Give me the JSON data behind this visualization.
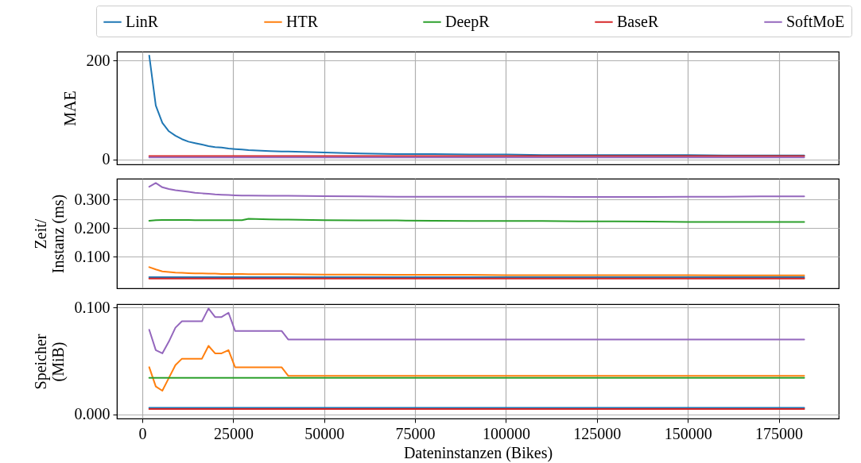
{
  "chart_data": [
    {
      "type": "line",
      "ylabel": "MAE",
      "legend": "top",
      "grid": true,
      "tick_labels": "y",
      "line_style": "solid",
      "marker": "none",
      "x": [
        1900,
        3700,
        5500,
        7300,
        9100,
        10900,
        12700,
        14500,
        16400,
        18200,
        20000,
        21800,
        23700,
        25500,
        27400,
        29200,
        35000,
        38300,
        40100,
        50000,
        60000,
        70000,
        80000,
        90000,
        100000,
        110000,
        120000,
        130000,
        140000,
        150000,
        160000,
        170000,
        182000
      ],
      "xlim": [
        -7000,
        191500
      ],
      "xticks": [
        0,
        25000,
        50000,
        75000,
        100000,
        125000,
        150000,
        175000
      ],
      "ylim": [
        -10,
        218
      ],
      "yticks": [
        0,
        200
      ],
      "series": [
        {
          "name": "LinR",
          "color": "#1f77b4",
          "values": [
            210,
            109,
            74,
            57,
            48,
            41,
            36,
            33,
            30,
            27,
            25,
            24,
            22,
            21,
            20,
            19,
            17,
            16,
            16,
            14,
            12,
            11,
            11,
            10,
            10,
            9,
            9,
            9,
            9,
            9,
            8,
            8,
            8
          ]
        },
        {
          "name": "HTR",
          "color": "#ff7f0e",
          "values": [
            null,
            null,
            null,
            null,
            null,
            null,
            null,
            null,
            null,
            null,
            null,
            null,
            null,
            null,
            null,
            null,
            null,
            null,
            null,
            null,
            null,
            null,
            null,
            null,
            null,
            null,
            null,
            null,
            null,
            null,
            null,
            null,
            null
          ]
        },
        {
          "name": "DeepR",
          "color": "#2ca02c",
          "values": [
            null,
            null,
            null,
            null,
            null,
            null,
            null,
            null,
            null,
            null,
            null,
            null,
            null,
            null,
            null,
            null,
            null,
            null,
            null,
            null,
            null,
            null,
            null,
            null,
            null,
            null,
            null,
            null,
            null,
            null,
            null,
            null,
            null
          ]
        },
        {
          "name": "BaseR",
          "color": "#d62728",
          "values": [
            7,
            7,
            7,
            7,
            7,
            7,
            7,
            7,
            7,
            7,
            7,
            7,
            7,
            7,
            7,
            7,
            7,
            7,
            7,
            7,
            7,
            7,
            7,
            7,
            7,
            7,
            7,
            7,
            7,
            7,
            7,
            7,
            7
          ]
        },
        {
          "name": "SoftMoE",
          "color": "#9467bd",
          "values": [
            4,
            4,
            4,
            4,
            4,
            4,
            4,
            4,
            4,
            4,
            4,
            4,
            4,
            4,
            4,
            4,
            4,
            4,
            4,
            4,
            4,
            4,
            4,
            4,
            4,
            4,
            4,
            4,
            4,
            4,
            4,
            4,
            4
          ]
        }
      ]
    },
    {
      "type": "line",
      "ylabel": "Zeit/\nInstanz (ms)",
      "grid": true,
      "tick_labels": "y",
      "line_style": "solid",
      "marker": "none",
      "x": [
        1900,
        3700,
        5500,
        7300,
        9100,
        10900,
        12700,
        14500,
        16400,
        18200,
        20000,
        21800,
        23700,
        25500,
        27400,
        29200,
        35000,
        38300,
        40100,
        50000,
        60000,
        70000,
        80000,
        90000,
        100000,
        110000,
        120000,
        130000,
        140000,
        150000,
        160000,
        170000,
        182000
      ],
      "xlim": [
        -7000,
        191500
      ],
      "xticks": [
        0,
        25000,
        50000,
        75000,
        100000,
        125000,
        150000,
        175000
      ],
      "ylim": [
        -0.01,
        0.373
      ],
      "yticks": [
        {
          "value": 0.1,
          "label": "0.100"
        },
        {
          "value": 0.2,
          "label": "0.200"
        },
        {
          "value": 0.3,
          "label": "0.300"
        }
      ],
      "series": [
        {
          "color": "#1f77b4",
          "values": [
            0.029,
            0.029,
            0.029,
            0.029,
            0.029,
            0.029,
            0.029,
            0.029,
            0.029,
            0.029,
            0.029,
            0.029,
            0.029,
            0.029,
            0.029,
            0.029,
            0.029,
            0.029,
            0.029,
            0.029,
            0.029,
            0.029,
            0.029,
            0.029,
            0.029,
            0.029,
            0.029,
            0.029,
            0.029,
            0.029,
            0.029,
            0.029,
            0.029
          ]
        },
        {
          "color": "#ff7f0e",
          "values": [
            0.064,
            0.056,
            0.049,
            0.047,
            0.045,
            0.044,
            0.043,
            0.042,
            0.042,
            0.041,
            0.041,
            0.04,
            0.04,
            0.04,
            0.04,
            0.039,
            0.039,
            0.039,
            0.039,
            0.038,
            0.038,
            0.037,
            0.037,
            0.037,
            0.036,
            0.036,
            0.036,
            0.036,
            0.036,
            0.036,
            0.035,
            0.035,
            0.035
          ]
        },
        {
          "color": "#2ca02c",
          "values": [
            0.226,
            0.228,
            0.229,
            0.229,
            0.229,
            0.229,
            0.229,
            0.228,
            0.228,
            0.228,
            0.228,
            0.228,
            0.228,
            0.228,
            0.228,
            0.233,
            0.231,
            0.23,
            0.23,
            0.228,
            0.227,
            0.227,
            0.226,
            0.225,
            0.225,
            0.225,
            0.224,
            0.224,
            0.223,
            0.222,
            0.222,
            0.222,
            0.222
          ]
        },
        {
          "color": "#d62728",
          "values": [
            0.024,
            0.024,
            0.024,
            0.024,
            0.024,
            0.024,
            0.024,
            0.024,
            0.024,
            0.024,
            0.024,
            0.024,
            0.024,
            0.024,
            0.024,
            0.024,
            0.024,
            0.024,
            0.024,
            0.024,
            0.024,
            0.024,
            0.024,
            0.024,
            0.024,
            0.024,
            0.024,
            0.024,
            0.024,
            0.024,
            0.024,
            0.024,
            0.024
          ]
        },
        {
          "color": "#9467bd",
          "values": [
            0.345,
            0.358,
            0.343,
            0.337,
            0.333,
            0.33,
            0.327,
            0.324,
            0.322,
            0.32,
            0.318,
            0.317,
            0.316,
            0.315,
            0.314,
            0.314,
            0.313,
            0.313,
            0.313,
            0.312,
            0.311,
            0.31,
            0.31,
            0.31,
            0.31,
            0.31,
            0.309,
            0.309,
            0.309,
            0.31,
            0.31,
            0.311,
            0.311
          ]
        }
      ]
    },
    {
      "type": "line",
      "ylabel": "Speicher\n(MiB)",
      "xlabel": "Dateninstanzen (Bikes)",
      "grid": true,
      "line_style": "solid",
      "marker": "none",
      "x": [
        1900,
        3700,
        5500,
        7300,
        9100,
        10900,
        12700,
        14500,
        16400,
        18200,
        20000,
        21800,
        23700,
        25500,
        27400,
        29200,
        35000,
        38300,
        40100,
        50000,
        60000,
        70000,
        80000,
        90000,
        100000,
        110000,
        120000,
        130000,
        140000,
        150000,
        160000,
        170000,
        182000
      ],
      "xlim": [
        -7000,
        191500
      ],
      "xticks": [
        0,
        25000,
        50000,
        75000,
        100000,
        125000,
        150000,
        175000
      ],
      "ylim": [
        -0.004,
        0.103
      ],
      "yticks": [
        {
          "value": 0,
          "label": "0.000"
        },
        {
          "value": 0.1,
          "label": "0.100"
        }
      ],
      "series": [
        {
          "color": "#1f77b4",
          "values": [
            0.006,
            0.006,
            0.006,
            0.006,
            0.006,
            0.006,
            0.006,
            0.006,
            0.006,
            0.006,
            0.006,
            0.006,
            0.006,
            0.006,
            0.006,
            0.006,
            0.006,
            0.006,
            0.006,
            0.006,
            0.006,
            0.006,
            0.006,
            0.006,
            0.006,
            0.006,
            0.006,
            0.006,
            0.006,
            0.006,
            0.006,
            0.006,
            0.006
          ]
        },
        {
          "color": "#ff7f0e",
          "values": [
            0.044,
            0.026,
            0.022,
            0.034,
            0.046,
            0.052,
            0.052,
            0.052,
            0.052,
            0.064,
            0.057,
            0.057,
            0.06,
            0.044,
            0.044,
            0.044,
            0.044,
            0.044,
            0.036,
            0.036,
            0.036,
            0.036,
            0.036,
            0.036,
            0.036,
            0.036,
            0.036,
            0.036,
            0.036,
            0.036,
            0.036,
            0.036,
            0.036
          ]
        },
        {
          "color": "#2ca02c",
          "values": [
            0.034,
            0.034,
            0.034,
            0.034,
            0.034,
            0.034,
            0.034,
            0.034,
            0.034,
            0.034,
            0.034,
            0.034,
            0.034,
            0.034,
            0.034,
            0.034,
            0.034,
            0.034,
            0.034,
            0.034,
            0.034,
            0.034,
            0.034,
            0.034,
            0.034,
            0.034,
            0.034,
            0.034,
            0.034,
            0.034,
            0.034,
            0.034,
            0.034
          ]
        },
        {
          "color": "#d62728",
          "values": [
            0.005,
            0.005,
            0.005,
            0.005,
            0.005,
            0.005,
            0.005,
            0.005,
            0.005,
            0.005,
            0.005,
            0.005,
            0.005,
            0.005,
            0.005,
            0.005,
            0.005,
            0.005,
            0.005,
            0.005,
            0.005,
            0.005,
            0.005,
            0.005,
            0.005,
            0.005,
            0.005,
            0.005,
            0.005,
            0.005,
            0.005,
            0.005,
            0.005
          ]
        },
        {
          "color": "#9467bd",
          "values": [
            0.079,
            0.06,
            0.057,
            0.068,
            0.081,
            0.087,
            0.087,
            0.087,
            0.087,
            0.099,
            0.091,
            0.091,
            0.095,
            0.078,
            0.078,
            0.078,
            0.078,
            0.078,
            0.07,
            0.07,
            0.07,
            0.07,
            0.07,
            0.07,
            0.07,
            0.07,
            0.07,
            0.07,
            0.07,
            0.07,
            0.07,
            0.07,
            0.07
          ]
        }
      ]
    }
  ]
}
